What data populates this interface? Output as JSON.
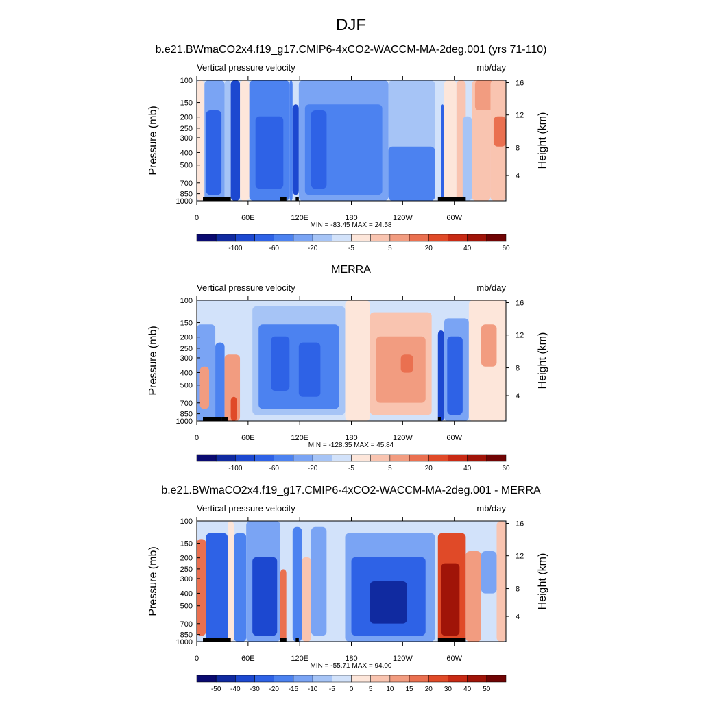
{
  "figure": {
    "title": "DJF"
  },
  "colors": {
    "scale12": [
      "#0a0a70",
      "#102aa0",
      "#1c48d0",
      "#2e62e6",
      "#4c82f0",
      "#7aa4f4",
      "#a6c4f6",
      "#d2e2fa",
      "#fde6da",
      "#f9c4b0",
      "#f29c80",
      "#ea7050",
      "#e04a28",
      "#c82a14",
      "#a01408",
      "#700404"
    ],
    "scaleDiff": [
      "#0a0a70",
      "#102aa0",
      "#1c48d0",
      "#2e62e6",
      "#4c82f0",
      "#7aa4f4",
      "#a6c4f6",
      "#d2e2fa",
      "#fde6da",
      "#f9c4b0",
      "#f29c80",
      "#ea7050",
      "#e04a28",
      "#c82a14",
      "#a01408",
      "#700404"
    ]
  },
  "chart_data": [
    {
      "type": "heatmap",
      "title": "b.e21.BWmaCO2x4.f19_g17.CMIP6-4xCO2-WACCM-MA-2deg.001 (yrs 71-110)",
      "left_label": "Vertical pressure velocity",
      "right_label": "mb/day",
      "ylabel": "Pressure (mb)",
      "ylabel_right": "Height (km)",
      "pressure_ticks": [
        "100",
        "150",
        "200",
        "250",
        "300",
        "400",
        "500",
        "700",
        "850",
        "1000"
      ],
      "height_ticks": [
        "16",
        "12",
        "8",
        "4"
      ],
      "x_ticks": [
        "0",
        "60E",
        "120E",
        "180",
        "120W",
        "60W"
      ],
      "stats": "MIN = -83.45  MAX =  24.58",
      "colorbar_labels": [
        "-100",
        "-60",
        "-20",
        "-5",
        "5",
        "20",
        "40",
        "60"
      ],
      "min": -83.45,
      "max": 24.58
    },
    {
      "type": "heatmap",
      "title": "MERRA",
      "left_label": "Vertical pressure velocity",
      "right_label": "mb/day",
      "ylabel": "Pressure (mb)",
      "ylabel_right": "Height (km)",
      "pressure_ticks": [
        "100",
        "150",
        "200",
        "250",
        "300",
        "400",
        "500",
        "700",
        "850",
        "1000"
      ],
      "height_ticks": [
        "16",
        "12",
        "8",
        "4"
      ],
      "x_ticks": [
        "0",
        "60E",
        "120E",
        "180",
        "120W",
        "60W"
      ],
      "stats": "MIN = -128.35  MAX =  45.84",
      "colorbar_labels": [
        "-100",
        "-60",
        "-20",
        "-5",
        "5",
        "20",
        "40",
        "60"
      ],
      "min": -128.35,
      "max": 45.84
    },
    {
      "type": "heatmap",
      "title": "b.e21.BWmaCO2x4.f19_g17.CMIP6-4xCO2-WACCM-MA-2deg.001 - MERRA",
      "left_label": "Vertical pressure velocity",
      "right_label": "mb/day",
      "ylabel": "Pressure (mb)",
      "ylabel_right": "Height (km)",
      "pressure_ticks": [
        "100",
        "150",
        "200",
        "250",
        "300",
        "400",
        "500",
        "700",
        "850",
        "1000"
      ],
      "height_ticks": [
        "16",
        "12",
        "8",
        "4"
      ],
      "x_ticks": [
        "0",
        "60E",
        "120E",
        "180",
        "120W",
        "60W"
      ],
      "stats": "MIN = -55.71  MAX =  94.00",
      "colorbar_labels": [
        "-50",
        "-40",
        "-30",
        "-20",
        "-15",
        "-10",
        "-5",
        "0",
        "5",
        "10",
        "15",
        "20",
        "30",
        "40",
        "50"
      ],
      "min": -55.71,
      "max": 94.0
    }
  ]
}
